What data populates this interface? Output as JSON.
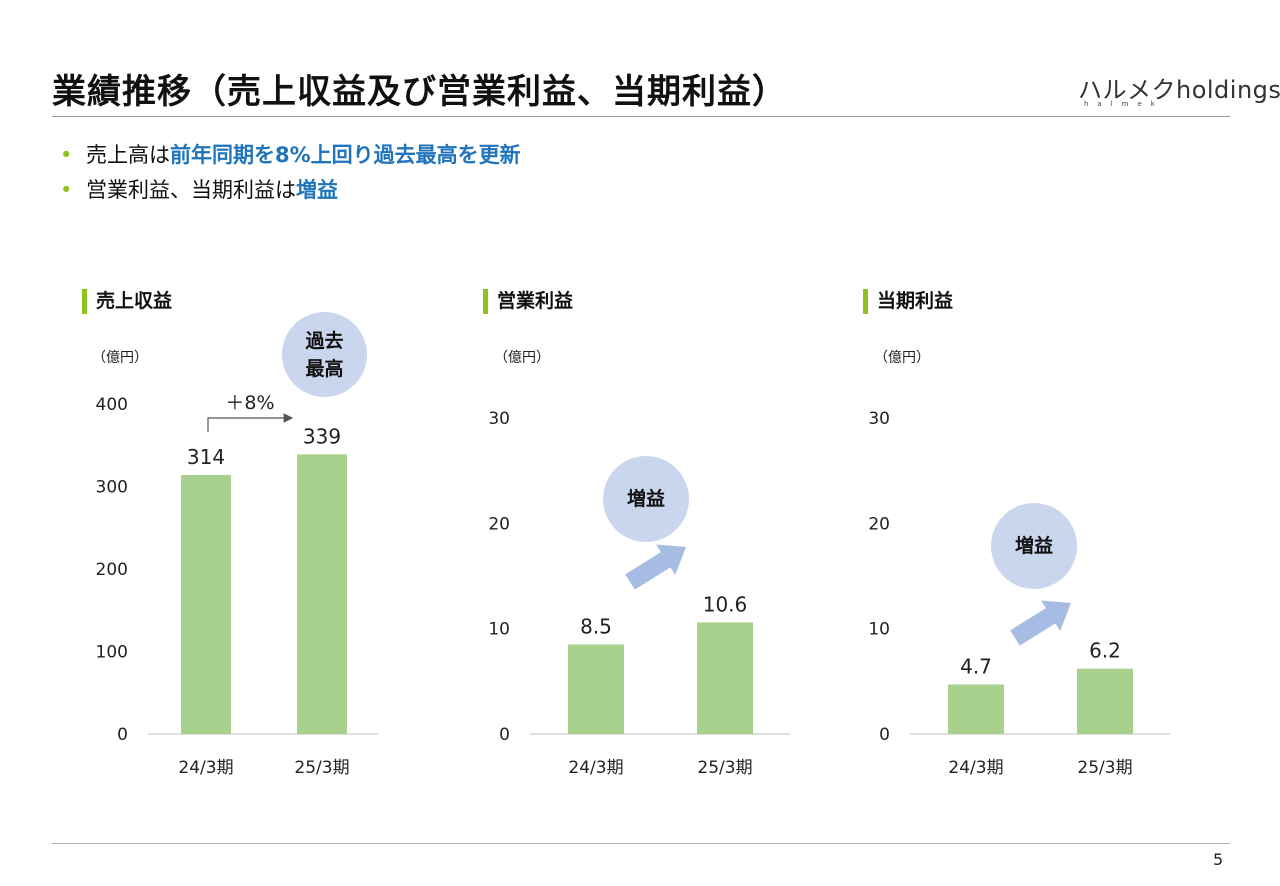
{
  "page": {
    "title": "業績推移（売上収益及び営業利益、当期利益）",
    "logo_text": "ハルメクholdings",
    "logo_subtext": "halmek",
    "page_number": "5"
  },
  "bullets": [
    {
      "plain": "売上高は",
      "highlight": "前年同期を8%上回り過去最高を更新"
    },
    {
      "plain": "営業利益、当期利益は",
      "highlight": "増益"
    }
  ],
  "colors": {
    "bar": "#a9d18e",
    "accent": "#8dc21f",
    "highlight": "#1f74bb",
    "bubble": "#c9d6ee",
    "arrow": "#a7bce3"
  },
  "chart_data": [
    {
      "type": "bar",
      "title": "売上収益",
      "unit": "（億円）",
      "categories": [
        "24/3期",
        "25/3期"
      ],
      "values": [
        314,
        339
      ],
      "value_labels": [
        "314",
        "339"
      ],
      "ylim": [
        0,
        400
      ],
      "yticks": [
        "0",
        "100",
        "200",
        "300",
        "400"
      ],
      "annotation": {
        "growth": "＋8%",
        "badge_line1": "過去",
        "badge_line2": "最高"
      }
    },
    {
      "type": "bar",
      "title": "営業利益",
      "unit": "（億円）",
      "categories": [
        "24/3期",
        "25/3期"
      ],
      "values": [
        8.5,
        10.6
      ],
      "value_labels": [
        "8.5",
        "10.6"
      ],
      "ylim": [
        0,
        30
      ],
      "yticks": [
        "0",
        "10",
        "20",
        "30"
      ],
      "annotation": {
        "badge": "増益"
      }
    },
    {
      "type": "bar",
      "title": "当期利益",
      "unit": "（億円）",
      "categories": [
        "24/3期",
        "25/3期"
      ],
      "values": [
        4.7,
        6.2
      ],
      "value_labels": [
        "4.7",
        "6.2"
      ],
      "ylim": [
        0,
        30
      ],
      "yticks": [
        "0",
        "10",
        "20",
        "30"
      ],
      "annotation": {
        "badge": "増益"
      }
    }
  ]
}
